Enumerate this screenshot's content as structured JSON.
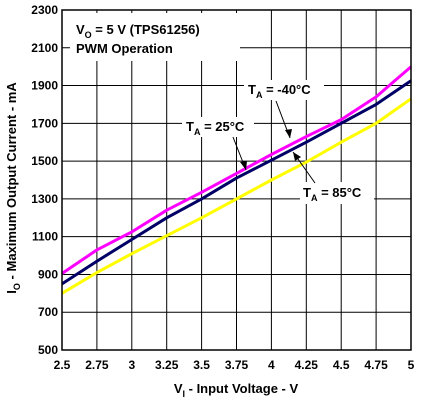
{
  "chart_data": {
    "type": "line",
    "xlabel": {
      "pre": "V",
      "sub": "I",
      "post": " - Input Voltage - V"
    },
    "ylabel": {
      "pre": "I",
      "sub": "O",
      "post": " - Maximum Output Current - mA"
    },
    "xlim": [
      2.5,
      5
    ],
    "ylim": [
      500,
      2300
    ],
    "x_ticks": [
      "2.5",
      "2.75",
      "3",
      "3.25",
      "3.5",
      "3.75",
      "4",
      "4.25",
      "4.5",
      "4.75",
      "5"
    ],
    "y_ticks": [
      "500",
      "700",
      "900",
      "1100",
      "1300",
      "1500",
      "1700",
      "1900",
      "2100",
      "2300"
    ],
    "grid": true,
    "annotation": {
      "line1_pre": "V",
      "line1_sub": "O",
      "line1_post": " = 5 V (TPS61256)",
      "line2": "PWM Operation"
    },
    "series": [
      {
        "name": {
          "pre": "T",
          "sub": "A",
          "post": " = -40°C"
        },
        "color": "#ff00ff",
        "x": [
          2.5,
          2.75,
          3.0,
          3.25,
          3.5,
          3.75,
          4.0,
          4.25,
          4.5,
          4.75,
          5.0
        ],
        "y": [
          905,
          1030,
          1125,
          1240,
          1335,
          1435,
          1535,
          1630,
          1720,
          1840,
          2000
        ]
      },
      {
        "name": {
          "pre": "T",
          "sub": "A",
          "post": " = 25°C"
        },
        "color": "#000066",
        "x": [
          2.5,
          2.75,
          3.0,
          3.25,
          3.5,
          3.75,
          4.0,
          4.25,
          4.5,
          4.75,
          5.0
        ],
        "y": [
          850,
          970,
          1085,
          1200,
          1300,
          1410,
          1505,
          1600,
          1700,
          1800,
          1925
        ]
      },
      {
        "name": {
          "pre": "T",
          "sub": "A",
          "post": " = 85°C"
        },
        "color": "#ffff00",
        "x": [
          2.5,
          2.75,
          3.0,
          3.25,
          3.5,
          3.75,
          4.0,
          4.25,
          4.5,
          4.75,
          5.0
        ],
        "y": [
          800,
          910,
          1010,
          1105,
          1200,
          1300,
          1400,
          1495,
          1600,
          1700,
          1830
        ]
      }
    ]
  }
}
